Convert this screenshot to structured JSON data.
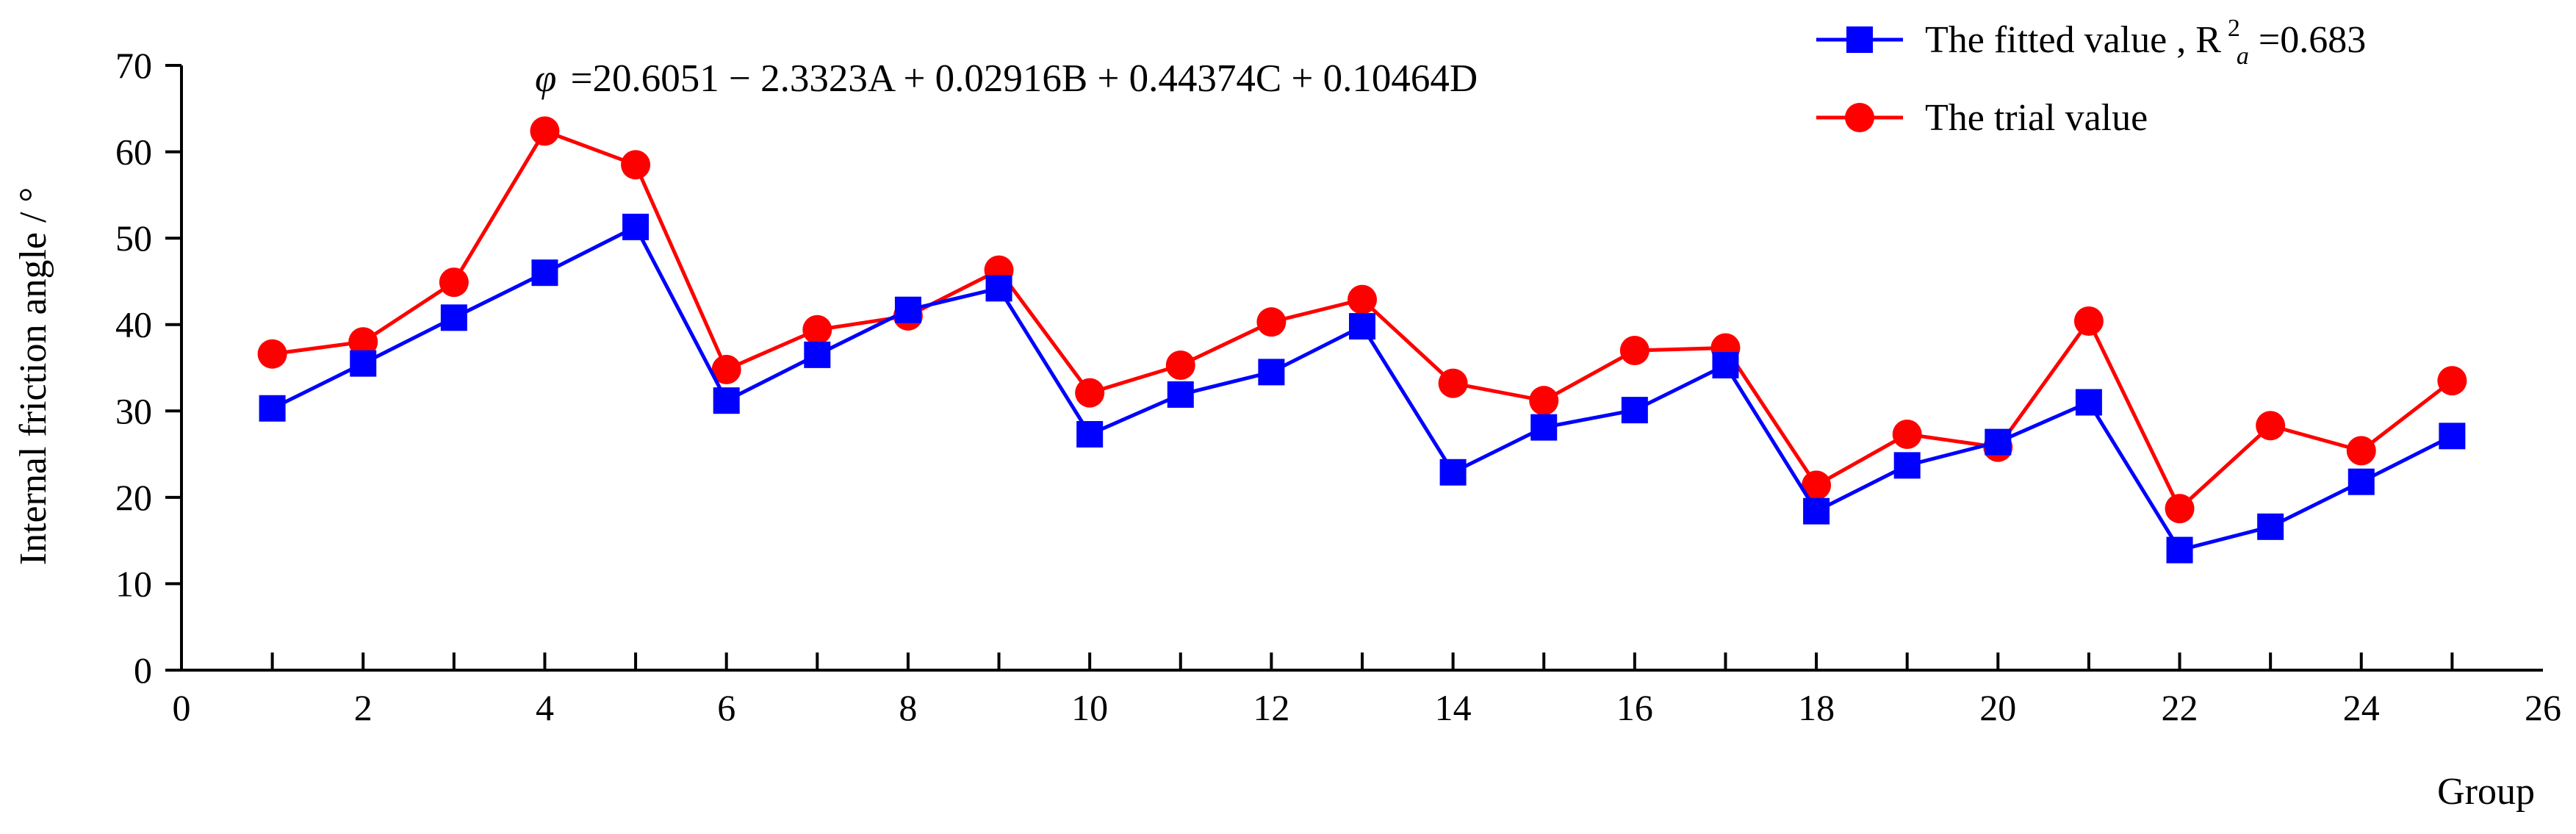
{
  "chart_data": {
    "type": "line",
    "equation": "=20.6051 − 2.3323A + 0.02916B + 0.44374C + 0.10464D",
    "equation_symbol": "φ",
    "xlabel": "Group",
    "ylabel": "Internal friction angle / °",
    "xlim": [
      0,
      26
    ],
    "ylim": [
      0,
      70
    ],
    "x_ticks": [
      "0",
      "2",
      "4",
      "6",
      "8",
      "10",
      "12",
      "14",
      "16",
      "18",
      "20",
      "22",
      "24",
      "26"
    ],
    "y_ticks": [
      "0",
      "10",
      "20",
      "30",
      "40",
      "50",
      "60",
      "70"
    ],
    "x_tick_values": [
      0,
      2,
      4,
      6,
      8,
      10,
      12,
      14,
      16,
      18,
      20,
      22,
      24,
      26
    ],
    "y_tick_values": [
      0,
      10,
      20,
      30,
      40,
      50,
      60,
      70
    ],
    "x_minor_step": 1,
    "grid": false,
    "legend_position": "top-right",
    "x": [
      1,
      2,
      3,
      4,
      5,
      6,
      7,
      8,
      9,
      10,
      11,
      12,
      13,
      14,
      15,
      16,
      17,
      18,
      19,
      20,
      21,
      22,
      23,
      24,
      25
    ],
    "series": [
      {
        "name": "The fitted value , R",
        "name_sup": "2",
        "name_sub": "a",
        "name_suffix": "=0.683",
        "color": "#0000ff",
        "marker": "square",
        "values": [
          30.3,
          35.5,
          40.8,
          46.0,
          51.3,
          31.2,
          36.5,
          41.7,
          44.2,
          27.3,
          31.9,
          34.5,
          39.8,
          22.9,
          28.1,
          30.1,
          35.3,
          18.4,
          23.7,
          26.4,
          31.0,
          13.9,
          16.6,
          21.8,
          27.1
        ]
      },
      {
        "name": "The trial value",
        "color": "#ff0000",
        "marker": "circle",
        "values": [
          36.6,
          38.0,
          44.9,
          62.4,
          58.5,
          34.8,
          39.4,
          41.0,
          46.3,
          32.1,
          35.3,
          40.3,
          42.9,
          33.2,
          31.2,
          37.0,
          37.3,
          21.4,
          27.3,
          25.8,
          40.4,
          18.7,
          28.3,
          25.4,
          33.5
        ]
      }
    ]
  }
}
